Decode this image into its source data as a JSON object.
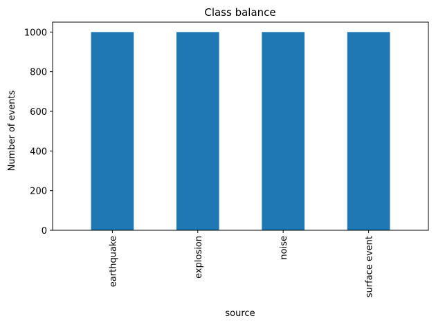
{
  "chart_data": {
    "type": "bar",
    "title": "Class balance",
    "xlabel": "source",
    "ylabel": "Number of events",
    "categories": [
      "earthquake",
      "explosion",
      "noise",
      "surface event"
    ],
    "values": [
      1000,
      1000,
      1000,
      1000
    ],
    "ylim": [
      0,
      1050
    ],
    "yticks": [
      0,
      200,
      400,
      600,
      800,
      1000
    ],
    "grid": false,
    "legend": "none",
    "bar_color": "#1f77b4"
  }
}
